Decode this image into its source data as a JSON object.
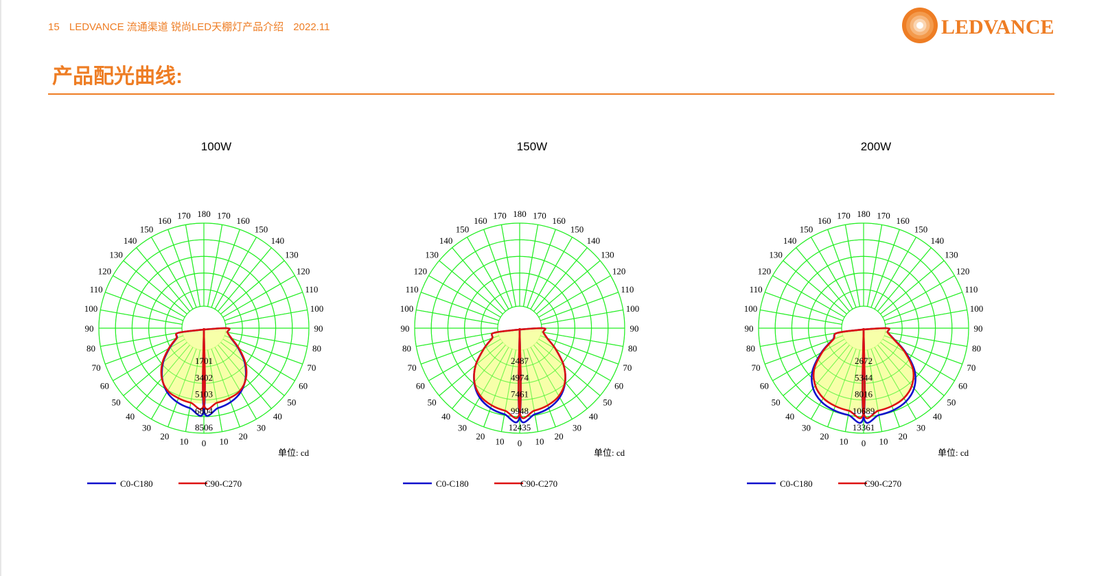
{
  "header": {
    "page_number": "15",
    "doc_title": "LEDVANCE 流通渠道 锐尚LED天棚灯产品介绍",
    "date": "2022.11"
  },
  "brand": {
    "name": "LEDVANCE",
    "color": "#ee7d24"
  },
  "page_title": "产品配光曲线:",
  "colors": {
    "grid": "#22ee22",
    "c0": "#1010cc",
    "c90": "#dd1111",
    "fill": "#f6ff9a"
  },
  "chart_data": [
    {
      "type": "polar",
      "title": "100W",
      "unit_label": "单位: cd",
      "angle_labels": [
        "0",
        "10",
        "20",
        "30",
        "40",
        "50",
        "60",
        "70",
        "80",
        "90",
        "100",
        "110",
        "120",
        "130",
        "140",
        "150",
        "160",
        "170",
        "180"
      ],
      "ring_labels": [
        "1701",
        "3402",
        "5103",
        "6804",
        "8506"
      ],
      "rmax": 8506,
      "series": [
        {
          "name": "C0-C180",
          "color": "#1010cc",
          "angles": [
            0,
            10,
            20,
            30,
            40,
            50,
            60,
            70,
            80,
            90
          ],
          "values": [
            6150,
            6060,
            5800,
            5300,
            4400,
            3200,
            1800,
            700,
            200,
            0
          ]
        },
        {
          "name": "C90-C270",
          "color": "#dd1111",
          "angles": [
            0,
            10,
            20,
            30,
            40,
            50,
            60,
            70,
            80,
            90
          ],
          "values": [
            5500,
            5500,
            5380,
            5150,
            4450,
            3300,
            1900,
            750,
            200,
            0
          ]
        }
      ]
    },
    {
      "type": "polar",
      "title": "150W",
      "unit_label": "单位: cd",
      "angle_labels": [
        "0",
        "10",
        "20",
        "30",
        "40",
        "50",
        "60",
        "70",
        "80",
        "90",
        "100",
        "110",
        "120",
        "130",
        "140",
        "150",
        "160",
        "170",
        "180"
      ],
      "ring_labels": [
        "2487",
        "4974",
        "7461",
        "9948",
        "12435"
      ],
      "rmax": 12435,
      "series": [
        {
          "name": "C0-C180",
          "color": "#1010cc",
          "angles": [
            0,
            10,
            20,
            30,
            40,
            50,
            60,
            70,
            80,
            90
          ],
          "values": [
            9900,
            9800,
            9450,
            8700,
            7300,
            5300,
            2900,
            1100,
            300,
            0
          ]
        },
        {
          "name": "C90-C270",
          "color": "#dd1111",
          "angles": [
            0,
            10,
            20,
            30,
            40,
            50,
            60,
            70,
            80,
            90
          ],
          "values": [
            9300,
            9250,
            9000,
            8450,
            7250,
            5300,
            2900,
            1100,
            300,
            0
          ]
        }
      ]
    },
    {
      "type": "polar",
      "title": "200W",
      "unit_label": "单位: cd",
      "angle_labels": [
        "0",
        "10",
        "20",
        "30",
        "40",
        "50",
        "60",
        "70",
        "80",
        "90",
        "100",
        "110",
        "120",
        "130",
        "140",
        "150",
        "160",
        "170",
        "180"
      ],
      "ring_labels": [
        "2672",
        "5344",
        "8016",
        "10689",
        "13361"
      ],
      "rmax": 13361,
      "series": [
        {
          "name": "C0-C180",
          "color": "#1010cc",
          "angles": [
            0,
            10,
            20,
            30,
            40,
            50,
            60,
            70,
            80,
            90
          ],
          "values": [
            10700,
            10650,
            10500,
            10100,
            9100,
            7200,
            4300,
            1700,
            400,
            0
          ]
        },
        {
          "name": "C90-C270",
          "color": "#dd1111",
          "angles": [
            0,
            10,
            20,
            30,
            40,
            50,
            60,
            70,
            80,
            90
          ],
          "values": [
            10000,
            9950,
            9800,
            9450,
            8550,
            6850,
            4100,
            1600,
            400,
            0
          ]
        }
      ]
    }
  ]
}
